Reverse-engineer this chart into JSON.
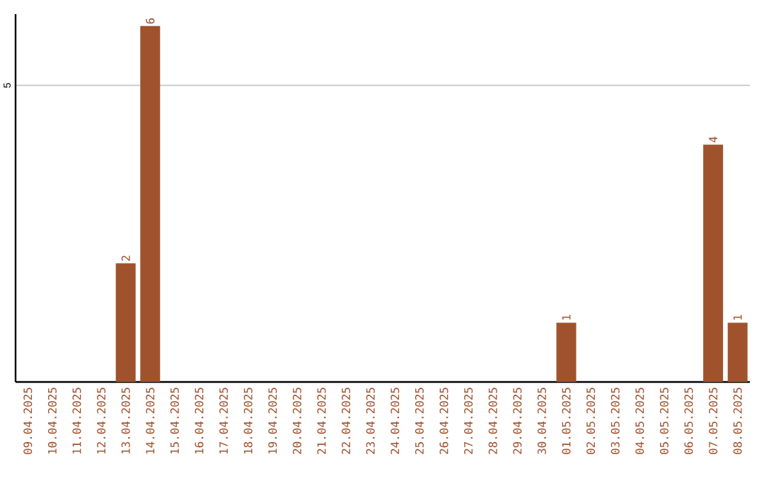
{
  "chart_data": {
    "type": "bar",
    "categories": [
      "09.04.2025",
      "10.04.2025",
      "11.04.2025",
      "12.04.2025",
      "13.04.2025",
      "14.04.2025",
      "15.04.2025",
      "16.04.2025",
      "17.04.2025",
      "18.04.2025",
      "19.04.2025",
      "20.04.2025",
      "21.04.2025",
      "22.04.2025",
      "23.04.2025",
      "24.04.2025",
      "25.04.2025",
      "26.04.2025",
      "27.04.2025",
      "28.04.2025",
      "29.04.2025",
      "30.04.2025",
      "01.05.2025",
      "02.05.2025",
      "03.05.2025",
      "04.05.2025",
      "05.05.2025",
      "06.05.2025",
      "07.05.2025",
      "08.05.2025"
    ],
    "values": [
      0,
      0,
      0,
      0,
      2,
      6,
      0,
      0,
      0,
      0,
      0,
      0,
      0,
      0,
      0,
      0,
      0,
      0,
      0,
      0,
      0,
      0,
      1,
      0,
      0,
      0,
      0,
      0,
      4,
      1
    ],
    "value_labels": [
      null,
      null,
      null,
      null,
      "2",
      "6",
      null,
      null,
      null,
      null,
      null,
      null,
      null,
      null,
      null,
      null,
      null,
      null,
      null,
      null,
      null,
      null,
      "1",
      null,
      null,
      null,
      null,
      null,
      "4",
      "1"
    ],
    "color": "#a0522d",
    "ylim": [
      0,
      6.2
    ],
    "yticks": [
      5
    ],
    "grid": "y"
  }
}
